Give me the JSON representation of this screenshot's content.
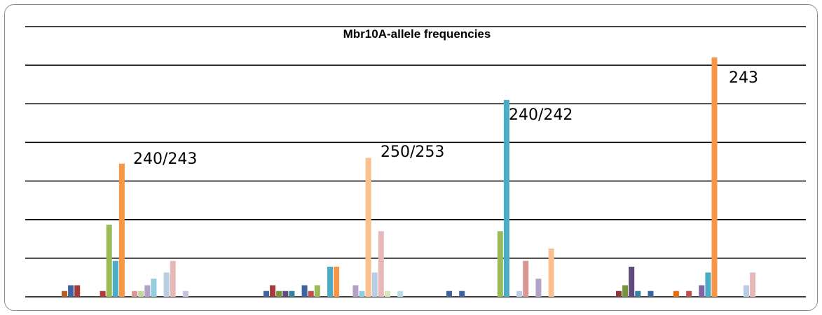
{
  "chart_data": {
    "type": "bar",
    "title": "Mbr10A-allele frequencies",
    "xlabel": "",
    "ylabel": "",
    "ylim": [
      0,
      7
    ],
    "grid": true,
    "legend": "none",
    "groups": [
      {
        "bars": [
          {
            "v": 0.15,
            "c": "#b35e25"
          },
          {
            "v": 0.3,
            "c": "#3d64a0"
          },
          {
            "v": 0.3,
            "c": "#a33c3a"
          },
          null,
          null,
          null,
          {
            "v": 0.15,
            "c": "#b03a3a"
          },
          {
            "v": 1.87,
            "c": "#9bbb59"
          },
          {
            "v": 0.93,
            "c": "#4bacc6"
          },
          {
            "v": 3.45,
            "c": "#f79646"
          },
          null,
          {
            "v": 0.15,
            "c": "#d99694"
          },
          {
            "v": 0.15,
            "c": "#c3d69b"
          },
          {
            "v": 0.3,
            "c": "#b3a2c7"
          },
          {
            "v": 0.47,
            "c": "#93cddd"
          },
          null,
          {
            "v": 0.63,
            "c": "#b9cde5"
          },
          {
            "v": 0.93,
            "c": "#e6b9b8"
          },
          null,
          {
            "v": 0.15,
            "c": "#ccc1da"
          }
        ]
      },
      {
        "bars": [
          {
            "v": 0.15,
            "c": "#3d64a0"
          },
          {
            "v": 0.3,
            "c": "#a33c3a"
          },
          {
            "v": 0.15,
            "c": "#77933c"
          },
          {
            "v": 0.15,
            "c": "#604a7b"
          },
          {
            "v": 0.15,
            "c": "#31849b"
          },
          null,
          {
            "v": 0.3,
            "c": "#3d64a0"
          },
          {
            "v": 0.15,
            "c": "#c0504d"
          },
          {
            "v": 0.3,
            "c": "#9bbb59"
          },
          null,
          {
            "v": 0.78,
            "c": "#4bacc6"
          },
          {
            "v": 0.78,
            "c": "#f79646"
          },
          null,
          null,
          {
            "v": 0.3,
            "c": "#b3a2c7"
          },
          {
            "v": 0.15,
            "c": "#93cddd"
          },
          {
            "v": 3.6,
            "c": "#fac090"
          },
          {
            "v": 0.63,
            "c": "#b9cde5"
          },
          {
            "v": 1.7,
            "c": "#e6b9b8"
          },
          {
            "v": 0.15,
            "c": "#d7e4bd"
          },
          null,
          {
            "v": 0.15,
            "c": "#b7dee8"
          }
        ]
      },
      {
        "bars": [
          {
            "v": 0.15,
            "c": "#3d64a0"
          },
          null,
          {
            "v": 0.15,
            "c": "#3d64a0"
          },
          null,
          null,
          null,
          null,
          null,
          {
            "v": 1.7,
            "c": "#9bbb59"
          },
          {
            "v": 5.1,
            "c": "#4bacc6"
          },
          null,
          {
            "v": 0.15,
            "c": "#b9cde5"
          },
          {
            "v": 0.93,
            "c": "#d99694"
          },
          null,
          {
            "v": 0.47,
            "c": "#b3a2c7"
          },
          null,
          {
            "v": 1.25,
            "c": "#fac090"
          }
        ]
      },
      {
        "bars": [
          {
            "v": 0.15,
            "c": "#8c3836"
          },
          {
            "v": 0.3,
            "c": "#77933c"
          },
          {
            "v": 0.78,
            "c": "#604a7b"
          },
          {
            "v": 0.15,
            "c": "#31849b"
          },
          null,
          {
            "v": 0.15,
            "c": "#3d64a0"
          },
          null,
          null,
          null,
          {
            "v": 0.15,
            "c": "#e46c0a"
          },
          null,
          {
            "v": 0.15,
            "c": "#c0504d"
          },
          null,
          {
            "v": 0.3,
            "c": "#8064a2"
          },
          {
            "v": 0.63,
            "c": "#4bacc6"
          },
          {
            "v": 6.2,
            "c": "#f79646"
          },
          null,
          null,
          null,
          null,
          {
            "v": 0.3,
            "c": "#b9cde5"
          },
          {
            "v": 0.63,
            "c": "#e6b9b8"
          }
        ]
      }
    ],
    "annotations": [
      "240/243",
      "250/253",
      "240/242",
      "243"
    ]
  }
}
